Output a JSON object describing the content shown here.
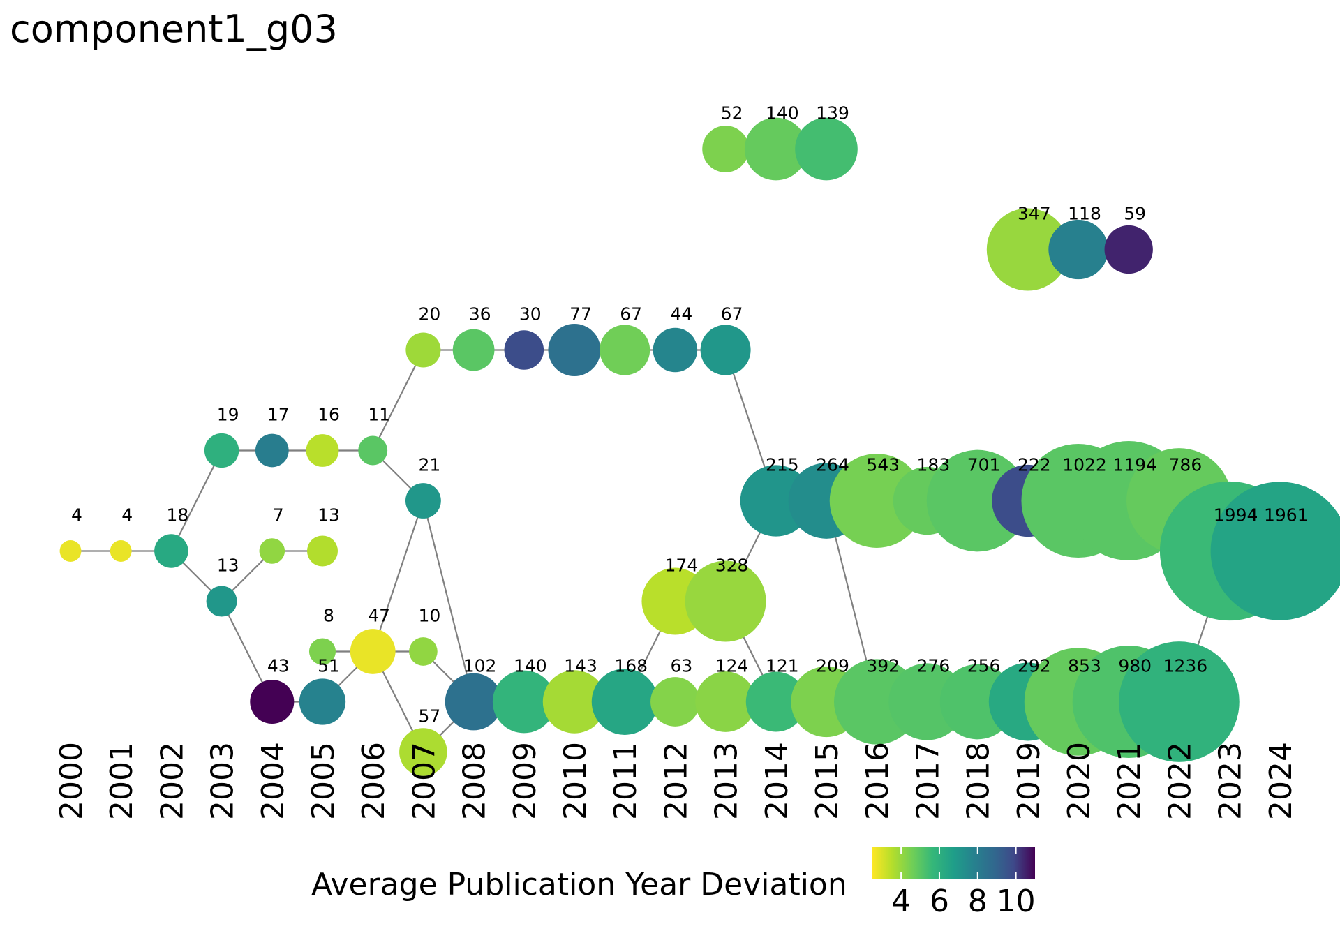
{
  "title": "component1_g03",
  "chart_data": {
    "type": "network",
    "x_axis": {
      "ticks": [
        "2000",
        "2001",
        "2002",
        "2003",
        "2004",
        "2005",
        "2006",
        "2007",
        "2008",
        "2009",
        "2010",
        "2011",
        "2012",
        "2013",
        "2014",
        "2015",
        "2016",
        "2017",
        "2018",
        "2019",
        "2020",
        "2021",
        "2022",
        "2023",
        "2024"
      ]
    },
    "legend": {
      "title": "Average Publication Year Deviation",
      "ticks": [
        "4",
        "6",
        "8",
        "10"
      ],
      "range": [
        2.5,
        11
      ],
      "colormap": "viridis (reversed)"
    },
    "nodes": [
      {
        "id": "a2000",
        "year": 2000,
        "row": 1,
        "label": "4",
        "deviation": 2.8
      },
      {
        "id": "a2001",
        "year": 2001,
        "row": 1,
        "label": "4",
        "deviation": 2.8
      },
      {
        "id": "a2002",
        "year": 2002,
        "row": 1,
        "label": "18",
        "deviation": 6.3
      },
      {
        "id": "b2003",
        "year": 2003,
        "row": 2,
        "label": "19",
        "deviation": 6.0
      },
      {
        "id": "b2004",
        "year": 2004,
        "row": 2,
        "label": "17",
        "deviation": 8.0
      },
      {
        "id": "b2005",
        "year": 2005,
        "row": 2,
        "label": "16",
        "deviation": 3.5
      },
      {
        "id": "b2006",
        "year": 2006,
        "row": 2,
        "label": "11",
        "deviation": 5.0
      },
      {
        "id": "c2007",
        "year": 2007,
        "row": 3,
        "label": "20",
        "deviation": 3.9
      },
      {
        "id": "c2008",
        "year": 2008,
        "row": 3,
        "label": "36",
        "deviation": 5.0
      },
      {
        "id": "c2009",
        "year": 2009,
        "row": 3,
        "label": "30",
        "deviation": 9.8
      },
      {
        "id": "c2010",
        "year": 2010,
        "row": 3,
        "label": "77",
        "deviation": 8.5
      },
      {
        "id": "c2011",
        "year": 2011,
        "row": 3,
        "label": "67",
        "deviation": 4.6
      },
      {
        "id": "c2012",
        "year": 2012,
        "row": 3,
        "label": "44",
        "deviation": 7.7
      },
      {
        "id": "c2013",
        "year": 2013,
        "row": 3,
        "label": "67",
        "deviation": 7.0
      },
      {
        "id": "d2007",
        "year": 2007,
        "row": 1.5,
        "label": "21",
        "deviation": 7.0
      },
      {
        "id": "e2003",
        "year": 2003,
        "row": 0.5,
        "label": "13",
        "deviation": 7.0
      },
      {
        "id": "f2004",
        "year": 2004,
        "row": 1,
        "label": "7",
        "deviation": 4.1
      },
      {
        "id": "f2005",
        "year": 2005,
        "row": 1,
        "label": "13",
        "deviation": 3.6
      },
      {
        "id": "g2004",
        "year": 2004,
        "row": -0.5,
        "label": "43",
        "deviation": 11.0
      },
      {
        "id": "g2005",
        "year": 2005,
        "row": -0.5,
        "label": "51",
        "deviation": 7.8
      },
      {
        "id": "h2005",
        "year": 2005,
        "row": 0,
        "label": "8",
        "deviation": 4.4
      },
      {
        "id": "h2006",
        "year": 2006,
        "row": 0,
        "label": "47",
        "deviation": 2.8
      },
      {
        "id": "h2007",
        "year": 2007,
        "row": 0,
        "label": "10",
        "deviation": 4.1
      },
      {
        "id": "i2007",
        "year": 2007,
        "row": -1,
        "label": "57",
        "deviation": 3.7
      },
      {
        "id": "m2008",
        "year": 2008,
        "row": -0.5,
        "label": "102",
        "deviation": 8.5
      },
      {
        "id": "m2009",
        "year": 2009,
        "row": -0.5,
        "label": "140",
        "deviation": 5.8
      },
      {
        "id": "m2010",
        "year": 2010,
        "row": -0.5,
        "label": "143",
        "deviation": 3.8
      },
      {
        "id": "m2011",
        "year": 2011,
        "row": -0.5,
        "label": "168",
        "deviation": 6.4
      },
      {
        "id": "m2012",
        "year": 2012,
        "row": -0.5,
        "label": "63",
        "deviation": 4.3
      },
      {
        "id": "m2013",
        "year": 2013,
        "row": -0.5,
        "label": "124",
        "deviation": 4.2
      },
      {
        "id": "m2014",
        "year": 2014,
        "row": -0.5,
        "label": "121",
        "deviation": 5.6
      },
      {
        "id": "m2015",
        "year": 2015,
        "row": -0.5,
        "label": "209",
        "deviation": 4.4
      },
      {
        "id": "m2016",
        "year": 2016,
        "row": -0.5,
        "label": "392",
        "deviation": 5.0
      },
      {
        "id": "m2017",
        "year": 2017,
        "row": -0.5,
        "label": "276",
        "deviation": 5.1
      },
      {
        "id": "m2018",
        "year": 2018,
        "row": -0.5,
        "label": "256",
        "deviation": 5.2
      },
      {
        "id": "m2019",
        "year": 2019,
        "row": -0.5,
        "label": "292",
        "deviation": 6.3
      },
      {
        "id": "m2020",
        "year": 2020,
        "row": -0.5,
        "label": "853",
        "deviation": 4.8
      },
      {
        "id": "m2021",
        "year": 2021,
        "row": -0.5,
        "label": "980",
        "deviation": 5.2
      },
      {
        "id": "m2022",
        "year": 2022,
        "row": -0.5,
        "label": "1236",
        "deviation": 5.9
      },
      {
        "id": "n2012",
        "year": 2012,
        "row": 0.5,
        "label": "174",
        "deviation": 3.5
      },
      {
        "id": "n2013",
        "year": 2013,
        "row": 0.5,
        "label": "328",
        "deviation": 4.0
      },
      {
        "id": "u2014",
        "year": 2014,
        "row": 1.5,
        "label": "215",
        "deviation": 7.1
      },
      {
        "id": "u2015",
        "year": 2015,
        "row": 1.5,
        "label": "264",
        "deviation": 7.4
      },
      {
        "id": "u2016",
        "year": 2016,
        "row": 1.5,
        "label": "543",
        "deviation": 4.5
      },
      {
        "id": "u2017",
        "year": 2017,
        "row": 1.5,
        "label": "183",
        "deviation": 4.8
      },
      {
        "id": "u2018",
        "year": 2018,
        "row": 1.5,
        "label": "701",
        "deviation": 5.0
      },
      {
        "id": "u2019",
        "year": 2019,
        "row": 1.5,
        "label": "222",
        "deviation": 9.8
      },
      {
        "id": "u2020",
        "year": 2020,
        "row": 1.5,
        "label": "1022",
        "deviation": 5.0
      },
      {
        "id": "u2021",
        "year": 2021,
        "row": 1.5,
        "label": "1194",
        "deviation": 5.0
      },
      {
        "id": "u2022",
        "year": 2022,
        "row": 1.5,
        "label": "786",
        "deviation": 4.8
      },
      {
        "id": "z2023",
        "year": 2023,
        "row": 1,
        "label": "1994",
        "deviation": 5.6
      },
      {
        "id": "z2024",
        "year": 2024,
        "row": 1,
        "label": "1961",
        "deviation": 6.5
      },
      {
        "id": "p2013",
        "year": 2013,
        "row": 5,
        "label": "52",
        "deviation": 4.4
      },
      {
        "id": "p2014",
        "year": 2014,
        "row": 5,
        "label": "140",
        "deviation": 4.8
      },
      {
        "id": "p2015",
        "year": 2015,
        "row": 5,
        "label": "139",
        "deviation": 5.4
      },
      {
        "id": "q2019",
        "year": 2019,
        "row": 4,
        "label": "347",
        "deviation": 4.0
      },
      {
        "id": "q2020",
        "year": 2020,
        "row": 4,
        "label": "118",
        "deviation": 7.9
      },
      {
        "id": "q2021",
        "year": 2021,
        "row": 4,
        "label": "59",
        "deviation": 10.5
      }
    ],
    "edges": [
      [
        "a2000",
        "a2001"
      ],
      [
        "a2001",
        "a2002"
      ],
      [
        "a2002",
        "b2003"
      ],
      [
        "a2002",
        "e2003"
      ],
      [
        "b2003",
        "b2004"
      ],
      [
        "b2004",
        "b2005"
      ],
      [
        "b2005",
        "b2006"
      ],
      [
        "b2006",
        "c2007"
      ],
      [
        "b2006",
        "d2007"
      ],
      [
        "c2007",
        "c2008"
      ],
      [
        "c2008",
        "c2009"
      ],
      [
        "c2009",
        "c2010"
      ],
      [
        "c2010",
        "c2011"
      ],
      [
        "c2011",
        "c2012"
      ],
      [
        "c2012",
        "c2013"
      ],
      [
        "c2013",
        "u2014"
      ],
      [
        "e2003",
        "f2004"
      ],
      [
        "f2004",
        "f2005"
      ],
      [
        "e2003",
        "g2004"
      ],
      [
        "g2004",
        "g2005"
      ],
      [
        "g2005",
        "h2006"
      ],
      [
        "h2005",
        "h2006"
      ],
      [
        "h2006",
        "h2007"
      ],
      [
        "h2006",
        "d2007"
      ],
      [
        "h2006",
        "i2007"
      ],
      [
        "h2007",
        "m2008"
      ],
      [
        "i2007",
        "m2008"
      ],
      [
        "d2007",
        "m2008"
      ],
      [
        "m2008",
        "m2009"
      ],
      [
        "m2009",
        "m2010"
      ],
      [
        "m2010",
        "m2011"
      ],
      [
        "m2011",
        "m2012"
      ],
      [
        "m2012",
        "m2013"
      ],
      [
        "m2013",
        "m2014"
      ],
      [
        "m2014",
        "m2015"
      ],
      [
        "m2015",
        "m2016"
      ],
      [
        "m2016",
        "m2017"
      ],
      [
        "m2017",
        "m2018"
      ],
      [
        "m2018",
        "m2019"
      ],
      [
        "m2019",
        "m2020"
      ],
      [
        "m2020",
        "m2021"
      ],
      [
        "m2021",
        "m2022"
      ],
      [
        "m2022",
        "z2023"
      ],
      [
        "m2011",
        "n2012"
      ],
      [
        "n2012",
        "n2013"
      ],
      [
        "n2013",
        "m2014"
      ],
      [
        "n2013",
        "u2014"
      ],
      [
        "u2014",
        "u2015"
      ],
      [
        "u2015",
        "u2016"
      ],
      [
        "u2016",
        "u2017"
      ],
      [
        "u2017",
        "u2018"
      ],
      [
        "u2018",
        "u2019"
      ],
      [
        "u2019",
        "u2020"
      ],
      [
        "u2020",
        "u2021"
      ],
      [
        "u2021",
        "u2022"
      ],
      [
        "u2022",
        "z2023"
      ],
      [
        "z2023",
        "z2024"
      ],
      [
        "u2015",
        "m2016"
      ],
      [
        "p2013",
        "p2014"
      ],
      [
        "p2014",
        "p2015"
      ],
      [
        "q2019",
        "q2020"
      ],
      [
        "q2020",
        "q2021"
      ]
    ]
  }
}
